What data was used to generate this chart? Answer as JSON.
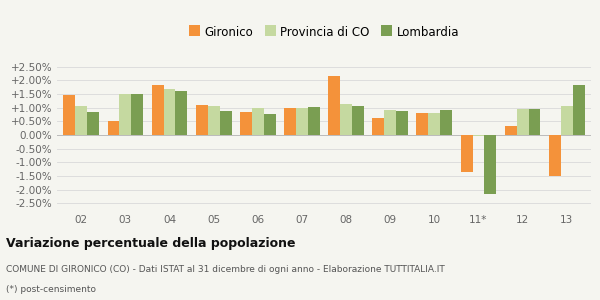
{
  "categories": [
    "02",
    "03",
    "04",
    "05",
    "06",
    "07",
    "08",
    "09",
    "10",
    "11*",
    "12",
    "13"
  ],
  "gironico": [
    1.48,
    0.5,
    1.82,
    1.1,
    0.83,
    0.98,
    2.17,
    0.62,
    0.82,
    -1.37,
    0.33,
    -1.5
  ],
  "provincia_co": [
    1.05,
    1.5,
    1.68,
    1.05,
    0.98,
    1.0,
    1.13,
    0.9,
    0.82,
    -0.05,
    0.97,
    1.05
  ],
  "lombardia": [
    0.83,
    1.52,
    1.6,
    0.88,
    0.76,
    1.02,
    1.05,
    0.87,
    0.92,
    -2.15,
    0.97,
    1.83
  ],
  "color_gironico": "#f4923a",
  "color_provincia": "#c5d9a0",
  "color_lombardia": "#7a9e52",
  "title": "Variazione percentuale della popolazione",
  "subtitle": "COMUNE DI GIRONICO (CO) - Dati ISTAT al 31 dicembre di ogni anno - Elaborazione TUTTITALIA.IT",
  "footnote": "(*) post-censimento",
  "legend_labels": [
    "Gironico",
    "Provincia di CO",
    "Lombardia"
  ],
  "ylim": [
    -2.75,
    2.75
  ],
  "yticks": [
    -2.5,
    -2.0,
    -1.5,
    -1.0,
    -0.5,
    0.0,
    0.5,
    1.0,
    1.5,
    2.0,
    2.5
  ],
  "bg_color": "#f5f5f0",
  "grid_color": "#dddddd"
}
